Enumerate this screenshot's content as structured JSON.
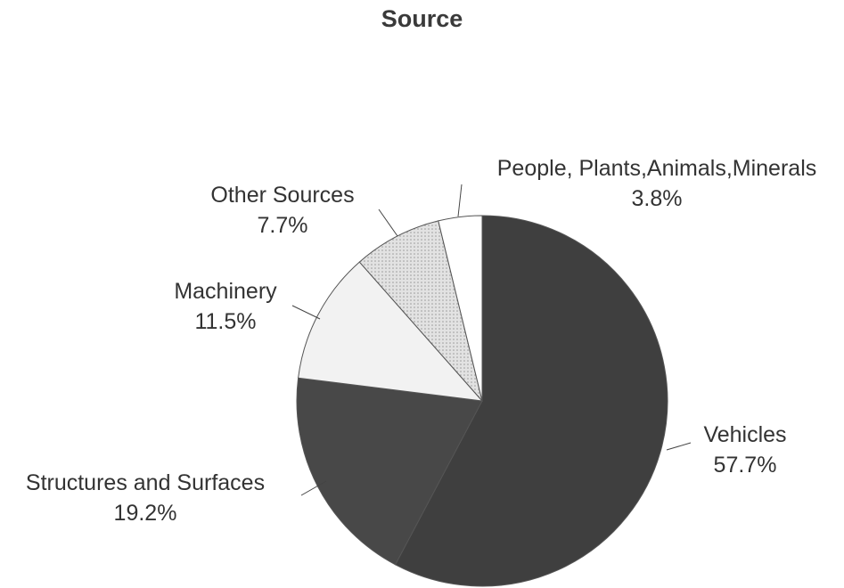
{
  "chart_data": {
    "type": "pie",
    "title": "Source",
    "slices": [
      {
        "label": "Vehicles",
        "value": 57.7,
        "value_label": "57.7%",
        "color": "#3f3f3f"
      },
      {
        "label": "Structures and Surfaces",
        "value": 19.2,
        "value_label": "19.2%",
        "color": "#484848"
      },
      {
        "label": "Machinery",
        "value": 11.5,
        "value_label": "11.5%",
        "color": "#f2f2f2"
      },
      {
        "label": "Other Sources",
        "value": 7.7,
        "value_label": "7.7%",
        "color": "#dcdcdc"
      },
      {
        "label": "People, Plants,Animals,Minerals",
        "value": 3.8,
        "value_label": "3.8%",
        "color": "#ffffff"
      }
    ]
  }
}
